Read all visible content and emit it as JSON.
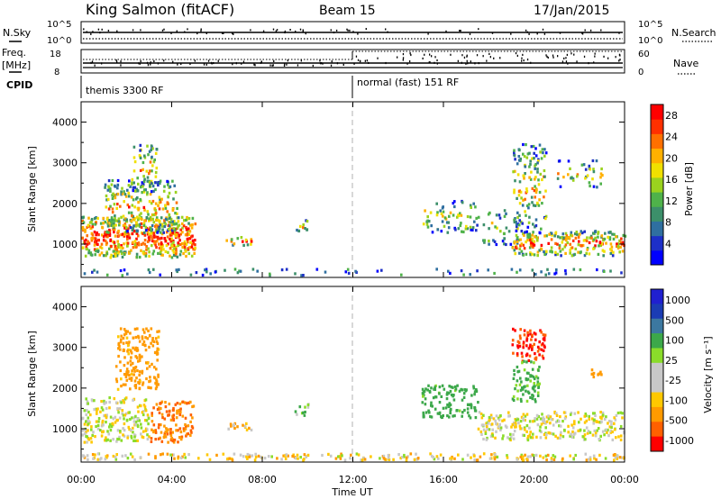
{
  "header": {
    "station": "King Salmon (fitACF)",
    "beam": "Beam 15",
    "date": "17/Jan/2015"
  },
  "summary_panel": {
    "nsky_label": "N.Sky",
    "nsearch_label": "N.Search",
    "freq_label_top": "Freq.",
    "freq_label_units": "[MHz]",
    "nave_label": "Nave",
    "cpid_label": "CPID",
    "noise_ticks": [
      "10^5",
      "10^0"
    ],
    "freq_ticks": [
      "18",
      "8"
    ],
    "nave_ticks": [
      "60",
      "0"
    ],
    "cpid_segments": [
      {
        "label": "themis 3300 RF",
        "start_hour": 0,
        "end_hour": 12
      },
      {
        "label": "normal (fast) 151 RF",
        "start_hour": 12,
        "end_hour": 24
      }
    ]
  },
  "colors": {
    "power_scale": [
      "#0000ff",
      "#1d2fc8",
      "#2f6fa0",
      "#3c8f6a",
      "#4fb24a",
      "#9ad21e",
      "#f0e000",
      "#ffb000",
      "#ff7000",
      "#ff3000",
      "#ff0000"
    ],
    "velocity_scale": [
      "#ff0000",
      "#ff6000",
      "#ff9a00",
      "#ffc800",
      "#c8c8c8",
      "#c8c8c8",
      "#8adc2a",
      "#3ca84a",
      "#3c78a0",
      "#1b3cb4",
      "#2020d0"
    ],
    "ground_scatter": "#c0c0c0",
    "midnight_dash": "#b0b0b0"
  },
  "chart_data": [
    {
      "type": "heatmap",
      "title": "Beam 15",
      "quantity": "Power",
      "colorbar_label": "Power [dB]",
      "colorbar_ticks": [
        "28",
        "24",
        "20",
        "16",
        "12",
        "8",
        "4"
      ],
      "colorbar_range": [
        0,
        30
      ],
      "xlabel": "Time UT",
      "ylabel": "Slant Range [km]",
      "xlim_hours": [
        0,
        24
      ],
      "ylim_km": [
        180,
        4500
      ],
      "x_ticks": [
        "00:00",
        "04:00",
        "08:00",
        "12:00",
        "16:00",
        "20:00",
        "00:00"
      ],
      "y_ticks": [
        "1000",
        "2000",
        "3000",
        "4000"
      ],
      "scatter_regions": [
        {
          "hours": [
            0.0,
            5.0
          ],
          "km": [
            700,
            1700
          ],
          "level": 0.75
        },
        {
          "hours": [
            1.0,
            4.2
          ],
          "km": [
            1300,
            2600
          ],
          "level": 0.4
        },
        {
          "hours": [
            2.2,
            3.3
          ],
          "km": [
            2300,
            3500
          ],
          "level": 0.35
        },
        {
          "hours": [
            6.3,
            7.5
          ],
          "km": [
            1000,
            1200
          ],
          "level": 0.5
        },
        {
          "hours": [
            9.4,
            10.0
          ],
          "km": [
            1350,
            1650
          ],
          "level": 0.45
        },
        {
          "hours": [
            15.0,
            17.5
          ],
          "km": [
            1300,
            2100
          ],
          "level": 0.25
        },
        {
          "hours": [
            17.5,
            19.3
          ],
          "km": [
            1000,
            1900
          ],
          "level": 0.2
        },
        {
          "hours": [
            19.0,
            24.0
          ],
          "km": [
            750,
            1350
          ],
          "level": 0.55
        },
        {
          "hours": [
            19.0,
            20.5
          ],
          "km": [
            1300,
            3500
          ],
          "level": 0.3
        },
        {
          "hours": [
            21.0,
            23.0
          ],
          "km": [
            2400,
            3100
          ],
          "level": 0.2
        },
        {
          "hours": [
            0.0,
            24.0
          ],
          "km": [
            260,
            420
          ],
          "level": 0.15
        }
      ]
    },
    {
      "type": "heatmap",
      "quantity": "Velocity",
      "colorbar_label": "Velocity [m s⁻¹]",
      "colorbar_ticks": [
        "1000",
        "500",
        "100",
        "25",
        "-25",
        "-100",
        "-500",
        "-1000"
      ],
      "xlabel": "Time UT",
      "ylabel": "Slant Range [km]",
      "xlim_hours": [
        0,
        24
      ],
      "ylim_km": [
        180,
        4500
      ],
      "x_ticks": [
        "00:00",
        "04:00",
        "08:00",
        "12:00",
        "16:00",
        "20:00",
        "00:00"
      ],
      "y_ticks": [
        "1000",
        "2000",
        "3000",
        "4000"
      ],
      "scatter_regions": [
        {
          "hours": [
            0.0,
            3.0
          ],
          "km": [
            700,
            1800
          ],
          "velocity": 0
        },
        {
          "hours": [
            3.0,
            5.0
          ],
          "km": [
            700,
            1700
          ],
          "velocity": -300
        },
        {
          "hours": [
            1.5,
            3.4
          ],
          "km": [
            2000,
            3500
          ],
          "velocity": -150
        },
        {
          "hours": [
            6.3,
            7.5
          ],
          "km": [
            1000,
            1200
          ],
          "velocity": -80
        },
        {
          "hours": [
            9.4,
            10.0
          ],
          "km": [
            1350,
            1650
          ],
          "velocity": 80
        },
        {
          "hours": [
            15.0,
            17.5
          ],
          "km": [
            1300,
            2100
          ],
          "velocity": 150
        },
        {
          "hours": [
            17.5,
            24.0
          ],
          "km": [
            750,
            1450
          ],
          "velocity": 0
        },
        {
          "hours": [
            19.0,
            20.5
          ],
          "km": [
            2700,
            3500
          ],
          "velocity": -700
        },
        {
          "hours": [
            19.0,
            20.2
          ],
          "km": [
            1700,
            2700
          ],
          "velocity": 120
        },
        {
          "hours": [
            22.5,
            23.0
          ],
          "km": [
            2300,
            2600
          ],
          "velocity": -200
        },
        {
          "hours": [
            0.0,
            24.0
          ],
          "km": [
            260,
            420
          ],
          "velocity": -40
        }
      ]
    }
  ]
}
